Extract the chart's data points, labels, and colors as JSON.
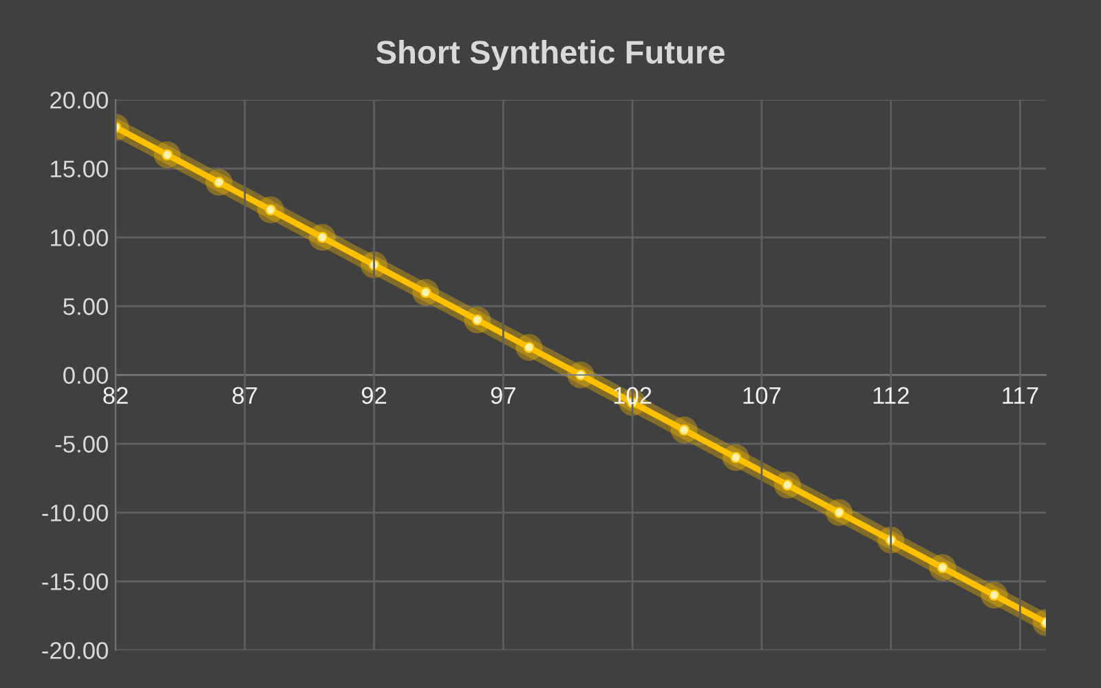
{
  "chart_data": {
    "type": "line",
    "title": "Short Synthetic Future",
    "x": [
      82,
      84,
      86,
      88,
      90,
      92,
      94,
      96,
      98,
      100,
      102,
      104,
      106,
      108,
      110,
      112,
      114,
      116,
      118
    ],
    "series": [
      {
        "color": "#ffc000",
        "values": [
          18,
          16,
          14,
          12,
          10,
          8,
          6,
          4,
          2,
          0,
          -2,
          -4,
          -6,
          -8,
          -10,
          -12,
          -14,
          -16,
          -18
        ]
      }
    ],
    "xlim": [
      82,
      118
    ],
    "xticks": [
      82,
      87,
      92,
      97,
      102,
      107,
      112,
      117
    ],
    "ylim": [
      -20,
      20
    ],
    "yticks": [
      {
        "value": -20,
        "label": "-20.00"
      },
      {
        "value": -15,
        "label": "-15.00"
      },
      {
        "value": -10,
        "label": "-10.00"
      },
      {
        "value": -5,
        "label": "-5.00"
      },
      {
        "value": 0,
        "label": "0.00"
      },
      {
        "value": 5,
        "label": "5.00"
      },
      {
        "value": 10,
        "label": "10.00"
      },
      {
        "value": 15,
        "label": "15.00"
      },
      {
        "value": 20,
        "label": "20.00"
      }
    ],
    "grid": true,
    "marker": "circle",
    "line_style": "solid",
    "legend": false
  }
}
